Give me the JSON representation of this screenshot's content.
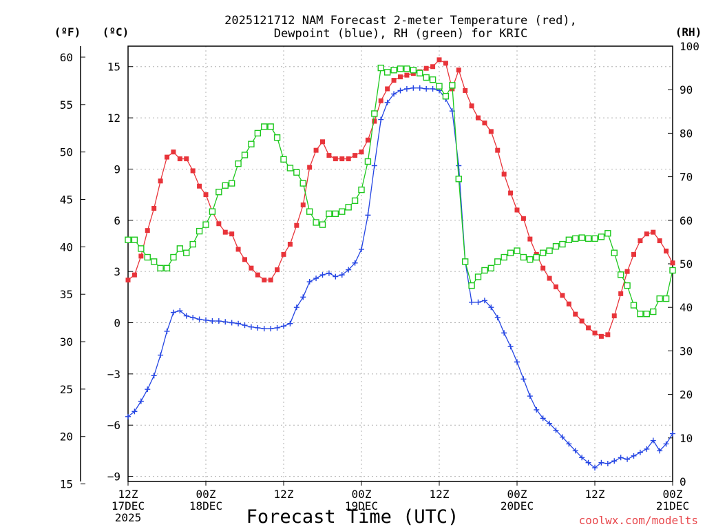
{
  "chart_data": {
    "type": "line",
    "title_lines": [
      "2025121712 NAM Forecast 2-meter Temperature (red),",
      "Dewpoint (blue), RH (green) for KRIC"
    ],
    "xlabel": "Forecast Time (UTC)",
    "credit": "coolwx.com/modelts",
    "units": {
      "left_f": "(ºF)",
      "left_c": "(ºC)",
      "right": "(RH)"
    },
    "x_unit": "hours from 2025-12-17 12Z",
    "xlim": [
      0,
      84
    ],
    "x_ticks": [
      {
        "x": 0,
        "lines": [
          "12Z",
          "17DEC",
          "2025"
        ]
      },
      {
        "x": 12,
        "lines": [
          "00Z",
          "18DEC"
        ]
      },
      {
        "x": 24,
        "lines": [
          "12Z"
        ]
      },
      {
        "x": 36,
        "lines": [
          "00Z",
          "19DEC"
        ]
      },
      {
        "x": 48,
        "lines": [
          "12Z"
        ]
      },
      {
        "x": 60,
        "lines": [
          "00Z",
          "20DEC"
        ]
      },
      {
        "x": 72,
        "lines": [
          "12Z"
        ]
      },
      {
        "x": 84,
        "lines": [
          "00Z",
          "21DEC"
        ]
      }
    ],
    "celsius_axis": {
      "ylim": [
        -9.3,
        16.2
      ],
      "ticks": [
        15,
        12,
        9,
        6,
        3,
        0,
        -3,
        -6,
        -9
      ],
      "tick_labels": [
        "15",
        "12",
        "9",
        "6",
        "3",
        "0",
        "−3",
        "−6",
        "−9"
      ]
    },
    "fahrenheit_axis": {
      "ticks": [
        60,
        55,
        50,
        45,
        40,
        35,
        30,
        25,
        20,
        15
      ],
      "tick_labels": [
        "60",
        "55",
        "50",
        "45",
        "40",
        "35",
        "30",
        "25",
        "20",
        "15"
      ]
    },
    "rh_axis": {
      "ylim": [
        0,
        100
      ],
      "ticks": [
        100,
        90,
        80,
        70,
        60,
        50,
        40,
        30,
        20,
        10,
        0
      ],
      "tick_labels": [
        "100",
        "90",
        "80",
        "70",
        "60",
        "50",
        "40",
        "30",
        "20",
        "10",
        "0"
      ]
    },
    "grid": true,
    "series": [
      {
        "color": "#e8343a",
        "marker": "filled-square",
        "axis": "celsius",
        "points": [
          [
            0,
            2.5
          ],
          [
            1,
            2.8
          ],
          [
            2,
            3.9
          ],
          [
            3,
            5.4
          ],
          [
            4,
            6.7
          ],
          [
            5,
            8.3
          ],
          [
            6,
            9.7
          ],
          [
            7,
            10.0
          ],
          [
            8,
            9.6
          ],
          [
            9,
            9.6
          ],
          [
            10,
            8.9
          ],
          [
            11,
            8.0
          ],
          [
            12,
            7.5
          ],
          [
            13,
            6.5
          ],
          [
            14,
            5.8
          ],
          [
            15,
            5.3
          ],
          [
            16,
            5.2
          ],
          [
            17,
            4.3
          ],
          [
            18,
            3.7
          ],
          [
            19,
            3.2
          ],
          [
            20,
            2.8
          ],
          [
            21,
            2.5
          ],
          [
            22,
            2.5
          ],
          [
            23,
            3.1
          ],
          [
            24,
            4.0
          ],
          [
            25,
            4.6
          ],
          [
            26,
            5.7
          ],
          [
            27,
            6.9
          ],
          [
            28,
            9.1
          ],
          [
            29,
            10.1
          ],
          [
            30,
            10.6
          ],
          [
            31,
            9.8
          ],
          [
            32,
            9.6
          ],
          [
            33,
            9.6
          ],
          [
            34,
            9.6
          ],
          [
            35,
            9.8
          ],
          [
            36,
            10.0
          ],
          [
            37,
            10.7
          ],
          [
            38,
            11.8
          ],
          [
            39,
            13.0
          ],
          [
            40,
            13.7
          ],
          [
            41,
            14.2
          ],
          [
            42,
            14.4
          ],
          [
            43,
            14.5
          ],
          [
            44,
            14.6
          ],
          [
            45,
            14.7
          ],
          [
            46,
            14.9
          ],
          [
            47,
            15.0
          ],
          [
            48,
            15.4
          ],
          [
            49,
            15.2
          ],
          [
            50,
            13.7
          ],
          [
            51,
            14.8
          ],
          [
            52,
            13.6
          ],
          [
            53,
            12.7
          ],
          [
            54,
            12.0
          ],
          [
            55,
            11.7
          ],
          [
            56,
            11.2
          ],
          [
            57,
            10.1
          ],
          [
            58,
            8.7
          ],
          [
            59,
            7.6
          ],
          [
            60,
            6.6
          ],
          [
            61,
            6.1
          ],
          [
            62,
            4.9
          ],
          [
            63,
            4.0
          ],
          [
            64,
            3.2
          ],
          [
            65,
            2.6
          ],
          [
            66,
            2.1
          ],
          [
            67,
            1.6
          ],
          [
            68,
            1.1
          ],
          [
            69,
            0.5
          ],
          [
            70,
            0.1
          ],
          [
            71,
            -0.3
          ],
          [
            72,
            -0.6
          ],
          [
            73,
            -0.8
          ],
          [
            74,
            -0.7
          ],
          [
            75,
            0.4
          ],
          [
            76,
            1.7
          ],
          [
            77,
            3.0
          ],
          [
            78,
            4.0
          ],
          [
            79,
            4.8
          ],
          [
            80,
            5.2
          ],
          [
            81,
            5.3
          ],
          [
            82,
            4.8
          ],
          [
            83,
            4.2
          ],
          [
            84,
            3.5
          ]
        ]
      },
      {
        "color": "#2445e3",
        "marker": "plus",
        "axis": "celsius",
        "points": [
          [
            0,
            -5.5
          ],
          [
            1,
            -5.2
          ],
          [
            2,
            -4.6
          ],
          [
            3,
            -3.9
          ],
          [
            4,
            -3.1
          ],
          [
            5,
            -1.9
          ],
          [
            6,
            -0.5
          ],
          [
            7,
            0.6
          ],
          [
            8,
            0.7
          ],
          [
            9,
            0.4
          ],
          [
            10,
            0.3
          ],
          [
            11,
            0.2
          ],
          [
            12,
            0.15
          ],
          [
            13,
            0.1
          ],
          [
            14,
            0.1
          ],
          [
            15,
            0.05
          ],
          [
            16,
            0.0
          ],
          [
            17,
            -0.05
          ],
          [
            18,
            -0.15
          ],
          [
            19,
            -0.25
          ],
          [
            20,
            -0.3
          ],
          [
            21,
            -0.35
          ],
          [
            22,
            -0.35
          ],
          [
            23,
            -0.3
          ],
          [
            24,
            -0.2
          ],
          [
            25,
            -0.05
          ],
          [
            26,
            0.9
          ],
          [
            27,
            1.5
          ],
          [
            28,
            2.4
          ],
          [
            29,
            2.6
          ],
          [
            30,
            2.8
          ],
          [
            31,
            2.9
          ],
          [
            32,
            2.7
          ],
          [
            33,
            2.8
          ],
          [
            34,
            3.1
          ],
          [
            35,
            3.5
          ],
          [
            36,
            4.3
          ],
          [
            37,
            6.3
          ],
          [
            38,
            9.2
          ],
          [
            39,
            11.9
          ],
          [
            40,
            12.9
          ],
          [
            41,
            13.4
          ],
          [
            42,
            13.6
          ],
          [
            43,
            13.7
          ],
          [
            44,
            13.75
          ],
          [
            45,
            13.75
          ],
          [
            46,
            13.7
          ],
          [
            47,
            13.7
          ],
          [
            48,
            13.6
          ],
          [
            49,
            13.1
          ],
          [
            50,
            12.4
          ],
          [
            51,
            9.2
          ],
          [
            52,
            3.6
          ],
          [
            53,
            1.2
          ],
          [
            54,
            1.2
          ],
          [
            55,
            1.3
          ],
          [
            56,
            0.9
          ],
          [
            57,
            0.3
          ],
          [
            58,
            -0.6
          ],
          [
            59,
            -1.4
          ],
          [
            60,
            -2.3
          ],
          [
            61,
            -3.3
          ],
          [
            62,
            -4.3
          ],
          [
            63,
            -5.1
          ],
          [
            64,
            -5.6
          ],
          [
            65,
            -5.9
          ],
          [
            66,
            -6.3
          ],
          [
            67,
            -6.7
          ],
          [
            68,
            -7.1
          ],
          [
            69,
            -7.5
          ],
          [
            70,
            -7.9
          ],
          [
            71,
            -8.2
          ],
          [
            72,
            -8.5
          ],
          [
            73,
            -8.2
          ],
          [
            74,
            -8.25
          ],
          [
            75,
            -8.1
          ],
          [
            76,
            -7.9
          ],
          [
            77,
            -8.0
          ],
          [
            78,
            -7.8
          ],
          [
            79,
            -7.6
          ],
          [
            80,
            -7.4
          ],
          [
            81,
            -6.9
          ],
          [
            82,
            -7.5
          ],
          [
            83,
            -7.1
          ],
          [
            84,
            -6.5
          ]
        ]
      },
      {
        "color": "#1ec81e",
        "marker": "open-square",
        "axis": "rh",
        "points": [
          [
            0,
            55.5
          ],
          [
            1,
            55.5
          ],
          [
            2,
            53.5
          ],
          [
            3,
            51.5
          ],
          [
            4,
            50.5
          ],
          [
            5,
            49.0
          ],
          [
            6,
            49.0
          ],
          [
            7,
            51.5
          ],
          [
            8,
            53.5
          ],
          [
            9,
            52.5
          ],
          [
            10,
            54.5
          ],
          [
            11,
            57.5
          ],
          [
            12,
            59.0
          ],
          [
            13,
            62.0
          ],
          [
            14,
            66.5
          ],
          [
            15,
            68.0
          ],
          [
            16,
            68.5
          ],
          [
            17,
            73.0
          ],
          [
            18,
            75.0
          ],
          [
            19,
            77.5
          ],
          [
            20,
            80.0
          ],
          [
            21,
            81.5
          ],
          [
            22,
            81.5
          ],
          [
            23,
            79.0
          ],
          [
            24,
            74.0
          ],
          [
            25,
            72.0
          ],
          [
            26,
            71.0
          ],
          [
            27,
            68.5
          ],
          [
            28,
            62.0
          ],
          [
            29,
            59.5
          ],
          [
            30,
            59.0
          ],
          [
            31,
            61.5
          ],
          [
            32,
            61.5
          ],
          [
            33,
            62.0
          ],
          [
            34,
            63.0
          ],
          [
            35,
            64.5
          ],
          [
            36,
            67.0
          ],
          [
            37,
            73.5
          ],
          [
            38,
            84.5
          ],
          [
            39,
            95.0
          ],
          [
            40,
            94.0
          ],
          [
            41,
            94.5
          ],
          [
            42,
            94.8
          ],
          [
            43,
            94.8
          ],
          [
            44,
            94.5
          ],
          [
            45,
            93.8
          ],
          [
            46,
            92.8
          ],
          [
            47,
            92.3
          ],
          [
            48,
            90.8
          ],
          [
            49,
            88.5
          ],
          [
            50,
            91.0
          ],
          [
            51,
            69.5
          ],
          [
            52,
            50.5
          ],
          [
            53,
            45.0
          ],
          [
            54,
            47.0
          ],
          [
            55,
            48.5
          ],
          [
            56,
            49.0
          ],
          [
            57,
            50.5
          ],
          [
            58,
            51.5
          ],
          [
            59,
            52.5
          ],
          [
            60,
            53.0
          ],
          [
            61,
            51.5
          ],
          [
            62,
            51.0
          ],
          [
            63,
            51.5
          ],
          [
            64,
            52.5
          ],
          [
            65,
            53.0
          ],
          [
            66,
            54.0
          ],
          [
            67,
            54.5
          ],
          [
            68,
            55.5
          ],
          [
            69,
            55.8
          ],
          [
            70,
            56.0
          ],
          [
            71,
            55.8
          ],
          [
            72,
            55.8
          ],
          [
            73,
            56.2
          ],
          [
            74,
            57.0
          ],
          [
            75,
            52.5
          ],
          [
            76,
            47.5
          ],
          [
            77,
            45.0
          ],
          [
            78,
            40.5
          ],
          [
            79,
            38.5
          ],
          [
            80,
            38.5
          ],
          [
            81,
            39.0
          ],
          [
            82,
            42.0
          ],
          [
            83,
            42.0
          ],
          [
            84,
            48.5
          ]
        ]
      }
    ]
  }
}
